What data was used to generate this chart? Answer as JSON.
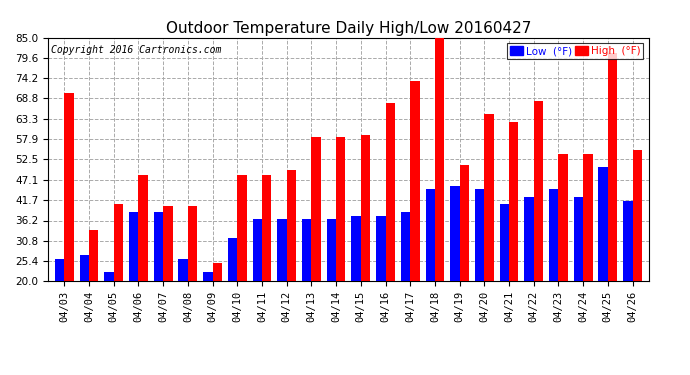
{
  "title": "Outdoor Temperature Daily High/Low 20160427",
  "copyright": "Copyright 2016 Cartronics.com",
  "ylim": [
    20.0,
    85.0
  ],
  "yticks": [
    20.0,
    25.4,
    30.8,
    36.2,
    41.7,
    47.1,
    52.5,
    57.9,
    63.3,
    68.8,
    74.2,
    79.6,
    85.0
  ],
  "dates": [
    "04/03",
    "04/04",
    "04/05",
    "04/06",
    "04/07",
    "04/08",
    "04/09",
    "04/10",
    "04/11",
    "04/12",
    "04/13",
    "04/14",
    "04/15",
    "04/16",
    "04/17",
    "04/18",
    "04/19",
    "04/20",
    "04/21",
    "04/22",
    "04/23",
    "04/24",
    "04/25",
    "04/26"
  ],
  "highs": [
    70.2,
    33.8,
    40.6,
    48.4,
    40.0,
    40.0,
    25.0,
    48.4,
    48.4,
    49.6,
    58.5,
    58.5,
    59.0,
    67.5,
    73.5,
    85.5,
    51.0,
    64.5,
    62.5,
    68.0,
    54.0,
    54.0,
    81.0,
    55.0
  ],
  "lows": [
    26.0,
    27.0,
    22.5,
    38.5,
    38.5,
    26.0,
    22.5,
    31.5,
    36.5,
    36.5,
    36.5,
    36.5,
    37.5,
    37.5,
    38.5,
    44.5,
    45.5,
    44.5,
    40.5,
    42.5,
    44.5,
    42.5,
    50.5,
    41.5
  ],
  "bar_color_low": "#0000FF",
  "bar_color_high": "#FF0000",
  "background_color": "#FFFFFF",
  "grid_color": "#AAAAAA",
  "title_fontsize": 11,
  "copyright_fontsize": 7,
  "tick_fontsize": 7.5,
  "legend_low_label": "Low  (°F)",
  "legend_high_label": "High  (°F)"
}
